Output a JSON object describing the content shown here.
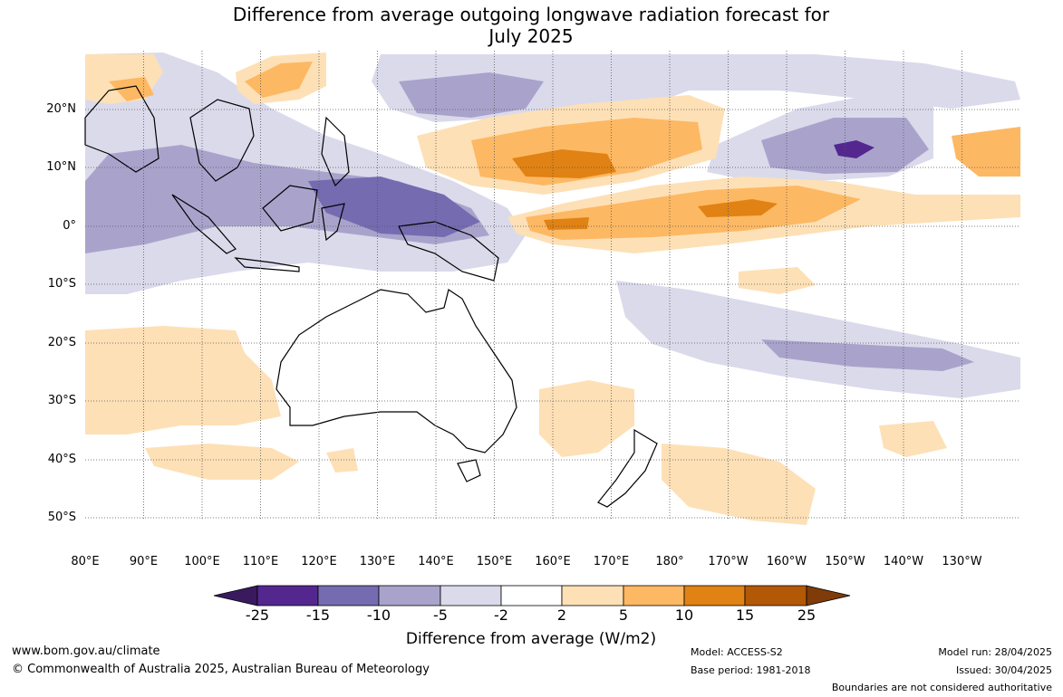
{
  "title_line1": "Difference from average outgoing longwave radiation forecast for",
  "title_line2": "July 2025",
  "lat_labels": [
    "20°N",
    "10°N",
    "0°",
    "10°S",
    "20°S",
    "30°S",
    "40°S",
    "50°S"
  ],
  "lon_labels": [
    "80°E",
    "90°E",
    "100°E",
    "110°E",
    "120°E",
    "130°E",
    "140°E",
    "150°E",
    "160°E",
    "170°E",
    "180°",
    "170°W",
    "160°W",
    "150°W",
    "140°W",
    "130°W"
  ],
  "colorbar": {
    "labels": [
      "-25",
      "-15",
      "-10",
      "-5",
      "-2",
      "2",
      "5",
      "10",
      "15",
      "25"
    ],
    "colors": [
      "#3a1a5e",
      "#54278f",
      "#756bb1",
      "#a9a3cc",
      "#dadaeb",
      "#ffffff",
      "#fee0b6",
      "#fdb863",
      "#e08214",
      "#b35806",
      "#7f3b08"
    ],
    "title": "Difference from average (W/m2)"
  },
  "footer": {
    "url": "www.bom.gov.au/climate",
    "copyright": "© Commonwealth of Australia 2025, Australian Bureau of Meteorology",
    "model": "Model: ACCESS-S2",
    "base_period": "Base period: 1981-2018",
    "model_run": "Model run: 28/04/2025",
    "issued": "Issued: 30/04/2025",
    "disclaimer": "Boundaries are not considered authoritative"
  }
}
